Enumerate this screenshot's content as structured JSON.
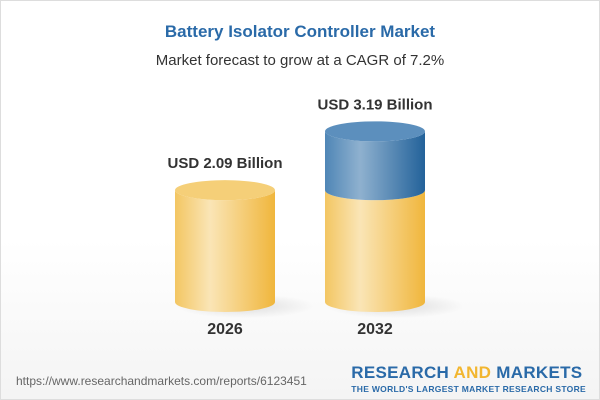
{
  "chart_data": {
    "type": "bar",
    "style": "3d-cylinder",
    "title": "Battery Isolator Controller Market",
    "subtitle": "Market forecast to grow at a CAGR of 7.2%",
    "categories": [
      "2026",
      "2032"
    ],
    "values": [
      2.09,
      3.19
    ],
    "unit": "USD Billion",
    "data_labels": [
      "USD 2.09 Billion",
      "USD 3.19 Billion"
    ],
    "colors": {
      "base": "#f2c35a",
      "growth": "#3d78ab",
      "title": "#2a6aa8"
    },
    "grid": false
  },
  "footer": {
    "url": "https://www.researchandmarkets.com/reports/6123451",
    "logo_research": "RESEARCH",
    "logo_and": "AND",
    "logo_markets": "MARKETS",
    "logo_tagline": "THE WORLD'S LARGEST MARKET RESEARCH STORE"
  }
}
